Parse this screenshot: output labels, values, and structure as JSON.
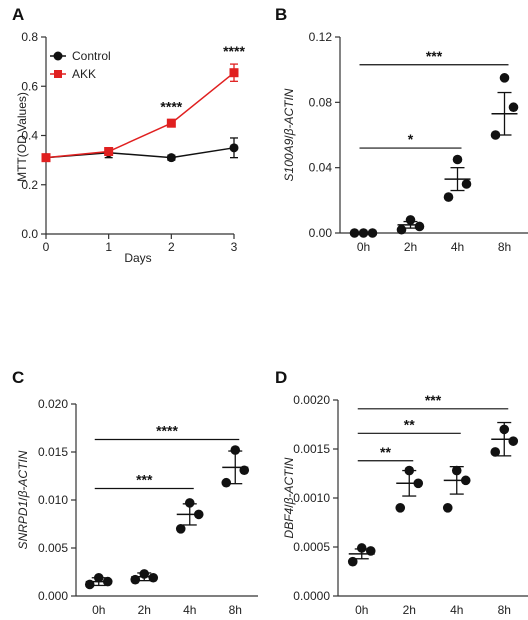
{
  "colors": {
    "control": "#111111",
    "akk": "#e02020",
    "axis": "#333333"
  },
  "chart_data": [
    {
      "panel": "A",
      "type": "line",
      "xlabel": "Days",
      "ylabel": "MTT(OD Values)",
      "xlim": [
        0,
        3
      ],
      "ylim": [
        0.0,
        0.8
      ],
      "xticks": [
        "0",
        "1",
        "2",
        "3"
      ],
      "yticks": [
        "0.0",
        "0.2",
        "0.4",
        "0.6",
        "0.8"
      ],
      "x": [
        0,
        1,
        2,
        3
      ],
      "series": [
        {
          "name": "Control",
          "marker": "circle",
          "color": "#111111",
          "values": [
            0.31,
            0.33,
            0.31,
            0.35
          ],
          "err": [
            0.01,
            0.02,
            0.01,
            0.04
          ]
        },
        {
          "name": "AKK",
          "marker": "square",
          "color": "#e02020",
          "values": [
            0.31,
            0.335,
            0.45,
            0.655
          ],
          "err": [
            0.01,
            0.01,
            0.015,
            0.035
          ]
        }
      ],
      "legend": "top-left",
      "annotations": [
        {
          "x": 2,
          "text": "****"
        },
        {
          "x": 3,
          "text": "****"
        }
      ]
    },
    {
      "panel": "B",
      "type": "scatter",
      "ylabel_pre": "S100A9",
      "ylabel_post": "β-ACTIN",
      "ylim": [
        0.0,
        0.12
      ],
      "yticks": [
        "0.00",
        "0.04",
        "0.08",
        "0.12"
      ],
      "categories": [
        "0h",
        "2h",
        "4h",
        "8h"
      ],
      "points": [
        [
          0.0,
          0.0,
          0.0
        ],
        [
          0.002,
          0.004,
          0.008
        ],
        [
          0.022,
          0.03,
          0.045
        ],
        [
          0.06,
          0.077,
          0.095
        ]
      ],
      "means": [
        0.0,
        0.005,
        0.033,
        0.073
      ],
      "err": [
        0.0,
        0.002,
        0.007,
        0.013
      ],
      "brackets": [
        {
          "from": 0,
          "to": 2,
          "y": 0.052,
          "text": "*"
        },
        {
          "from": 0,
          "to": 3,
          "y": 0.103,
          "text": "***"
        }
      ]
    },
    {
      "panel": "C",
      "type": "scatter",
      "ylabel_pre": "SNRPD1",
      "ylabel_post": "β-ACTIN",
      "ylim": [
        0.0,
        0.02
      ],
      "yticks": [
        "0.000",
        "0.005",
        "0.010",
        "0.015",
        "0.020"
      ],
      "categories": [
        "0h",
        "2h",
        "4h",
        "8h"
      ],
      "points": [
        [
          0.0012,
          0.0015,
          0.0019
        ],
        [
          0.0017,
          0.0019,
          0.0023
        ],
        [
          0.007,
          0.0085,
          0.0097
        ],
        [
          0.0118,
          0.0131,
          0.0152
        ]
      ],
      "means": [
        0.0015,
        0.002,
        0.0085,
        0.0134
      ],
      "err": [
        0.0004,
        0.0004,
        0.0011,
        0.0017
      ],
      "brackets": [
        {
          "from": 0,
          "to": 2,
          "y": 0.0112,
          "text": "***"
        },
        {
          "from": 0,
          "to": 3,
          "y": 0.0163,
          "text": "****"
        }
      ]
    },
    {
      "panel": "D",
      "type": "scatter",
      "ylabel_pre": "DBF4",
      "ylabel_post": "β-ACTIN",
      "ylim": [
        0.0,
        0.002
      ],
      "yticks": [
        "0.0000",
        "0.0005",
        "0.0010",
        "0.0015",
        "0.0020"
      ],
      "categories": [
        "0h",
        "2h",
        "4h",
        "8h"
      ],
      "points": [
        [
          0.00035,
          0.00046,
          0.00049
        ],
        [
          0.0009,
          0.00115,
          0.00128
        ],
        [
          0.0009,
          0.00118,
          0.00128
        ],
        [
          0.00147,
          0.00158,
          0.0017
        ]
      ],
      "means": [
        0.00043,
        0.00115,
        0.00118,
        0.0016
      ],
      "err": [
        5e-05,
        0.00013,
        0.00014,
        0.00017
      ],
      "brackets": [
        {
          "from": 0,
          "to": 1,
          "y": 0.00138,
          "text": "**"
        },
        {
          "from": 0,
          "to": 2,
          "y": 0.00166,
          "text": "**"
        },
        {
          "from": 0,
          "to": 3,
          "y": 0.00191,
          "text": "***"
        }
      ]
    }
  ]
}
